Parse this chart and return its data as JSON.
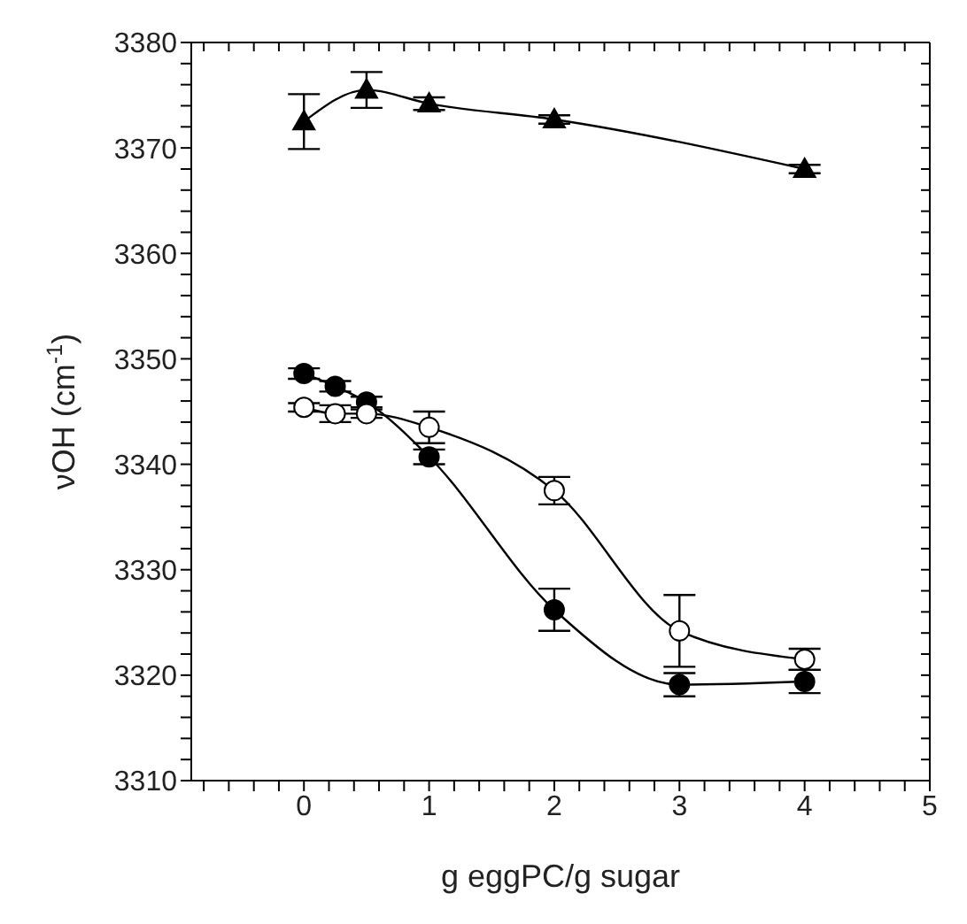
{
  "chart_data": {
    "type": "line",
    "xlabel": "g eggPC/g sugar",
    "ylabel": "νOH (cm$^{-1}$)",
    "xlim": [
      -0.9,
      5
    ],
    "ylim": [
      3310,
      3380
    ],
    "xticks": [
      {
        "value": -0.8,
        "label": null
      },
      {
        "value": -0.6,
        "label": null
      },
      {
        "value": -0.4,
        "label": null
      },
      {
        "value": -0.2,
        "label": null
      },
      0,
      {
        "value": 0.2,
        "label": null
      },
      {
        "value": 0.4,
        "label": null
      },
      {
        "value": 0.6,
        "label": null
      },
      {
        "value": 0.8,
        "label": null
      },
      1,
      {
        "value": 1.2,
        "label": null
      },
      {
        "value": 1.4,
        "label": null
      },
      {
        "value": 1.6,
        "label": null
      },
      {
        "value": 1.8,
        "label": null
      },
      2,
      {
        "value": 2.2,
        "label": null
      },
      {
        "value": 2.4,
        "label": null
      },
      {
        "value": 2.6,
        "label": null
      },
      {
        "value": 2.8,
        "label": null
      },
      3,
      {
        "value": 3.2,
        "label": null
      },
      {
        "value": 3.4,
        "label": null
      },
      {
        "value": 3.6,
        "label": null
      },
      {
        "value": 3.8,
        "label": null
      },
      4,
      {
        "value": 4.2,
        "label": null
      },
      {
        "value": 4.4,
        "label": null
      },
      {
        "value": 4.6,
        "label": null
      },
      {
        "value": 4.8,
        "label": null
      },
      5
    ],
    "yticks": [
      3310,
      {
        "value": 3312,
        "label": null
      },
      {
        "value": 3314,
        "label": null
      },
      {
        "value": 3316,
        "label": null
      },
      {
        "value": 3318,
        "label": null
      },
      3320,
      {
        "value": 3322,
        "label": null
      },
      {
        "value": 3324,
        "label": null
      },
      {
        "value": 3326,
        "label": null
      },
      {
        "value": 3328,
        "label": null
      },
      3330,
      {
        "value": 3332,
        "label": null
      },
      {
        "value": 3334,
        "label": null
      },
      {
        "value": 3336,
        "label": null
      },
      {
        "value": 3338,
        "label": null
      },
      3340,
      {
        "value": 3342,
        "label": null
      },
      {
        "value": 3344,
        "label": null
      },
      {
        "value": 3346,
        "label": null
      },
      {
        "value": 3348,
        "label": null
      },
      3350,
      {
        "value": 3352,
        "label": null
      },
      {
        "value": 3354,
        "label": null
      },
      {
        "value": 3356,
        "label": null
      },
      {
        "value": 3358,
        "label": null
      },
      3360,
      {
        "value": 3362,
        "label": null
      },
      {
        "value": 3364,
        "label": null
      },
      {
        "value": 3366,
        "label": null
      },
      {
        "value": 3368,
        "label": null
      },
      3370,
      {
        "value": 3372,
        "label": null
      },
      {
        "value": 3374,
        "label": null
      },
      {
        "value": 3376,
        "label": null
      },
      {
        "value": 3378,
        "label": null
      },
      3380
    ],
    "grid": false,
    "line_style": "solid",
    "series": [
      {
        "color": "#000000",
        "marker": "triangle",
        "x": [
          0,
          0.5,
          1,
          2,
          4
        ],
        "values": [
          3372.5,
          3375.5,
          3374.2,
          3372.7,
          3368
        ],
        "errors": [
          2.6,
          1.7,
          0.6,
          0.4,
          0.4
        ]
      },
      {
        "color": "#000000",
        "marker": "circle",
        "x": [
          0,
          0.25,
          0.5,
          1,
          2,
          3,
          4
        ],
        "values": [
          3348.6,
          3347.4,
          3345.9,
          3340.7,
          3326.2,
          3319.1,
          3319.4
        ],
        "errors": [
          0.5,
          0.5,
          0.5,
          0.7,
          2.0,
          1.1,
          1.1
        ]
      },
      {
        "color": "#ffffff",
        "marker": "circle",
        "x": [
          0,
          0.25,
          0.5,
          1,
          2,
          3,
          4
        ],
        "values": [
          3345.4,
          3344.8,
          3344.8,
          3343.5,
          3337.5,
          3324.2,
          3321.5
        ],
        "errors": [
          0.4,
          0.8,
          0.4,
          1.5,
          1.3,
          3.4,
          1.0
        ]
      }
    ]
  }
}
